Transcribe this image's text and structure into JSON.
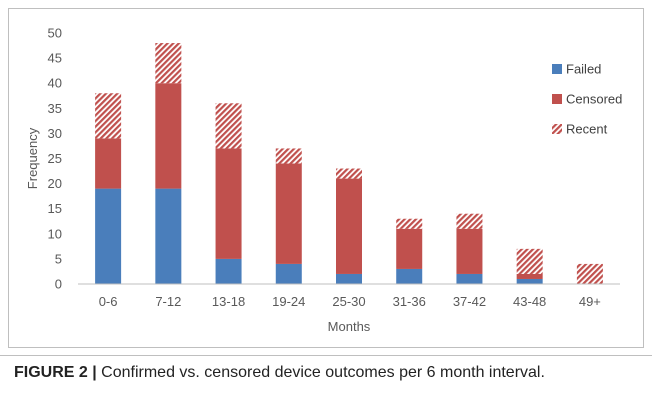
{
  "chart_data": {
    "type": "bar",
    "stacked": true,
    "categories": [
      "0-6",
      "7-12",
      "13-18",
      "19-24",
      "25-30",
      "31-36",
      "37-42",
      "43-48",
      "49+"
    ],
    "series": [
      {
        "name": "Failed",
        "values": [
          19,
          19,
          5,
          4,
          2,
          3,
          2,
          1,
          0
        ],
        "color": "#4a7ebb",
        "pattern": "solid"
      },
      {
        "name": "Censored",
        "values": [
          10,
          21,
          22,
          20,
          19,
          8,
          9,
          1,
          0
        ],
        "color": "#c0504d",
        "pattern": "solid"
      },
      {
        "name": "Recent",
        "values": [
          9,
          8,
          9,
          3,
          2,
          2,
          3,
          5,
          4
        ],
        "color": "#c0504d",
        "pattern": "hatched"
      }
    ],
    "xlabel": "Months",
    "ylabel": "Frequency",
    "ylim": [
      0,
      50
    ],
    "yticks": [
      "0",
      "5",
      "10",
      "15",
      "20",
      "25",
      "30",
      "35",
      "40",
      "45",
      "50"
    ],
    "grid": false,
    "legend_position": "right"
  },
  "caption": {
    "label": "FIGURE 2 |",
    "text": " Confirmed vs. censored device outcomes per 6 month interval."
  }
}
